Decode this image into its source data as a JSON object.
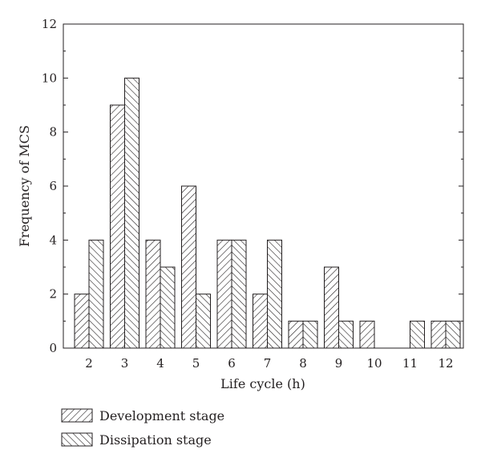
{
  "chart_data": {
    "type": "bar",
    "title": "",
    "xlabel": "Life cycle (h)",
    "ylabel": "Frequency of MCS",
    "categories": [
      "2",
      "3",
      "4",
      "5",
      "6",
      "7",
      "8",
      "9",
      "10",
      "11",
      "12"
    ],
    "series": [
      {
        "name": "Development stage",
        "pattern": "diagonal-hatch-forward",
        "values": [
          2,
          9,
          4,
          6,
          4,
          2,
          1,
          3,
          1,
          0,
          1
        ]
      },
      {
        "name": "Dissipation stage",
        "pattern": "diagonal-hatch-backward",
        "values": [
          4,
          10,
          3,
          2,
          4,
          4,
          1,
          1,
          0,
          1,
          1
        ]
      }
    ],
    "ylim": [
      0,
      12
    ],
    "yticks": [
      0,
      2,
      4,
      6,
      8,
      10,
      12
    ],
    "grid": false,
    "legend_position": "bottom-left",
    "colors": {
      "stroke": "#231f20",
      "background": "#ffffff"
    }
  }
}
